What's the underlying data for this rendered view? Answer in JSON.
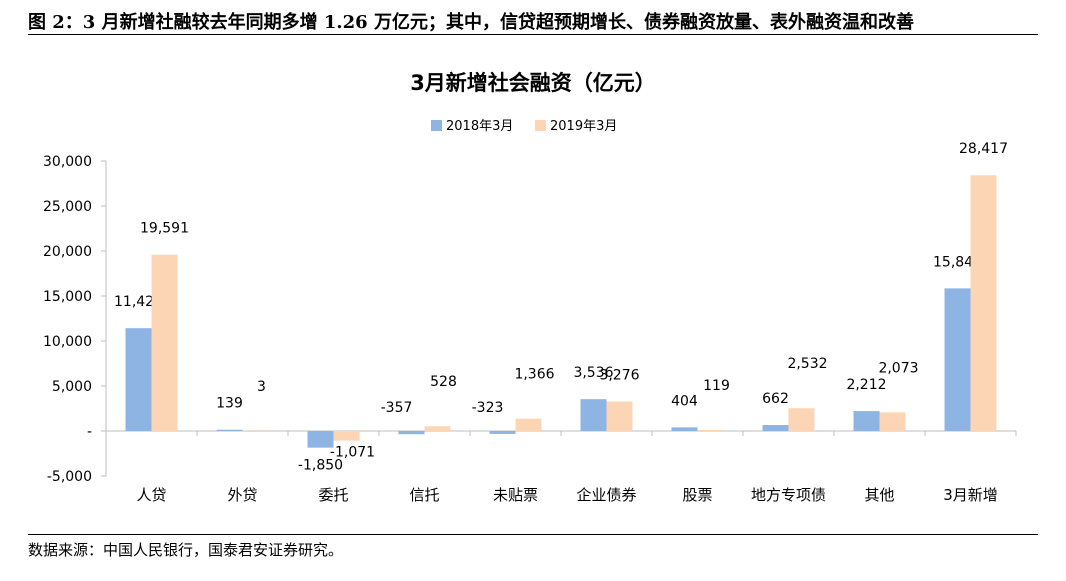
{
  "header": {
    "figure_title": "图 2：3 月新增社融较去年同期多增 1.26 万亿元；其中，信贷超预期增长、债券融资放量、表外融资温和改善"
  },
  "footer": {
    "source": "数据来源：中国人民银行，国泰君安证券研究。"
  },
  "chart_data": {
    "type": "bar",
    "title": "3月新增社会融资（亿元）",
    "xlabel": "",
    "ylabel": "",
    "categories": [
      "人贷",
      "外贷",
      "委托",
      "信托",
      "未贴票",
      "企业债券",
      "股票",
      "地方专项债",
      "其他",
      "3月新增"
    ],
    "series": [
      {
        "name": "2018年3月",
        "color": "#8eb4e3",
        "values": [
          11425,
          139,
          -1850,
          -357,
          -323,
          3536,
          404,
          662,
          2212,
          15848
        ],
        "labels": [
          "11,425",
          "139",
          "-1,850",
          "-357",
          "-323",
          "3,536",
          "404",
          "662",
          "2,212",
          "15,848"
        ]
      },
      {
        "name": "2019年3月",
        "color": "#fcd5b5",
        "values": [
          19591,
          3,
          -1071,
          528,
          1366,
          3276,
          119,
          2532,
          2073,
          28417
        ],
        "labels": [
          "19,591",
          "3",
          "-1,071",
          "528",
          "1,366",
          "3,276",
          "119",
          "2,532",
          "2,073",
          "28,417"
        ]
      }
    ],
    "yticks": [
      "30,000",
      "25,000",
      "20,000",
      "15,000",
      "10,000",
      "5,000",
      "-",
      "-5,000"
    ],
    "ytick_values": [
      30000,
      25000,
      20000,
      15000,
      10000,
      5000,
      0,
      -5000
    ],
    "ylim": [
      -5000,
      30000
    ],
    "legend_position": "top-center",
    "grid": false
  }
}
